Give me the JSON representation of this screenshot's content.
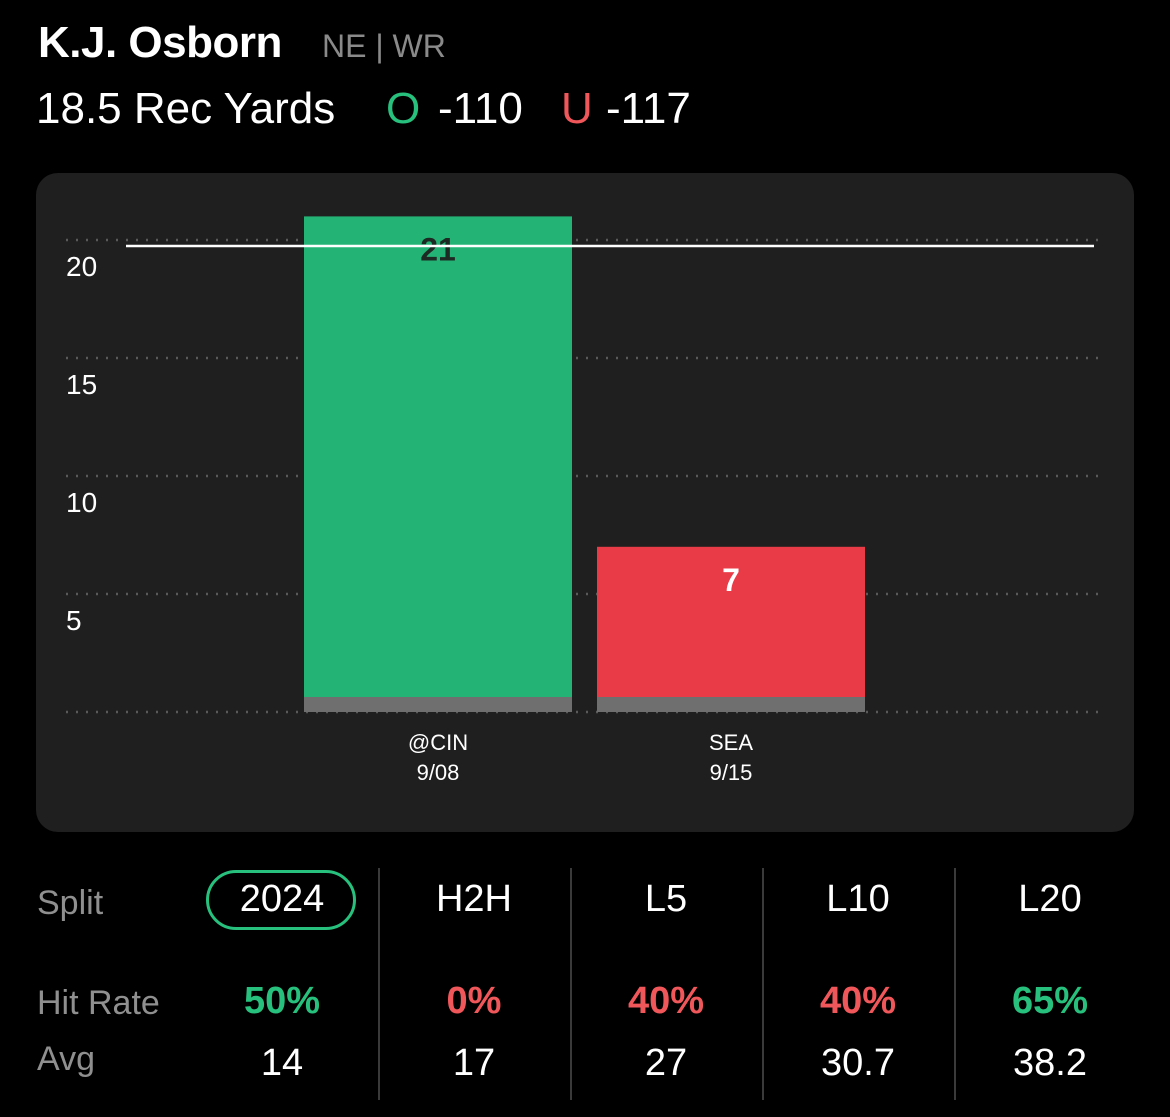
{
  "header": {
    "player_name": "K.J. Osborn",
    "team_position": "NE | WR",
    "prop_line": "18.5 Rec Yards",
    "over_label": "O",
    "over_odds": "-110",
    "under_label": "U",
    "under_odds": "-117"
  },
  "colors": {
    "over_green": "#27c07d",
    "under_red": "#e93b47",
    "background": "#000000",
    "card": "#1f1f1f"
  },
  "chart_data": {
    "type": "bar",
    "categories": [
      "@CIN",
      "SEA"
    ],
    "dates": [
      "9/08",
      "9/15"
    ],
    "values": [
      21,
      7
    ],
    "bar_colors": [
      "#23b475",
      "#e93b47"
    ],
    "value_labels": [
      "21",
      "7"
    ],
    "y_ticks": [
      5,
      10,
      15,
      20
    ],
    "ylim": [
      0,
      22
    ],
    "threshold_line": 20,
    "grid": true,
    "title": "",
    "xlabel": "",
    "ylabel": ""
  },
  "splits": {
    "split_label": "Split",
    "hit_rate_label": "Hit Rate",
    "avg_label": "Avg",
    "selected": "2024",
    "columns": [
      {
        "name": "2024",
        "hit_rate": "50%",
        "hit_color": "#27c07d",
        "avg": "14"
      },
      {
        "name": "H2H",
        "hit_rate": "0%",
        "hit_color": "#f0575b",
        "avg": "17"
      },
      {
        "name": "L5",
        "hit_rate": "40%",
        "hit_color": "#f0575b",
        "avg": "27"
      },
      {
        "name": "L10",
        "hit_rate": "40%",
        "hit_color": "#f0575b",
        "avg": "30.7"
      },
      {
        "name": "L20",
        "hit_rate": "65%",
        "hit_color": "#27c07d",
        "avg": "38.2"
      }
    ]
  }
}
